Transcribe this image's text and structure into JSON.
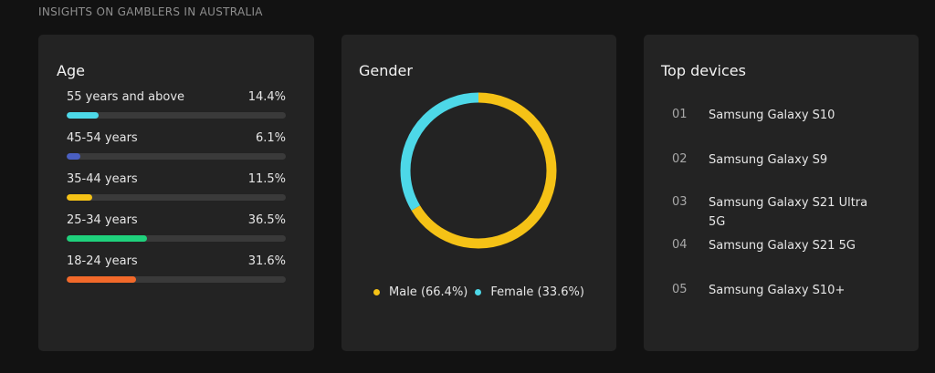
{
  "page": {
    "header": "INSIGHTS ON GAMBLERS IN AUSTRALIA"
  },
  "age": {
    "title": "Age",
    "rows": [
      {
        "label": "55 years and above",
        "percent_text": "14.4%",
        "fill_fraction": 0.144,
        "color": "#4dd8e8"
      },
      {
        "label": "45-54 years",
        "percent_text": "6.1%",
        "fill_fraction": 0.061,
        "color": "#4a5fc1"
      },
      {
        "label": "35-44 years",
        "percent_text": "11.5%",
        "fill_fraction": 0.115,
        "color": "#f5c216"
      },
      {
        "label": "25-34 years",
        "percent_text": "36.5%",
        "fill_fraction": 0.365,
        "color": "#1fd17c"
      },
      {
        "label": "18-24 years",
        "percent_text": "31.6%",
        "fill_fraction": 0.316,
        "color": "#f2692a"
      }
    ]
  },
  "gender": {
    "title": "Gender",
    "segments": [
      {
        "legend": "Male (66.4%)",
        "fraction": 0.664,
        "color": "#f5c216"
      },
      {
        "legend": "Female (33.6%)",
        "fraction": 0.336,
        "color": "#4dd8e8"
      }
    ]
  },
  "devices": {
    "title": "Top devices",
    "items": [
      {
        "num": "01",
        "name": "Samsung Galaxy S10"
      },
      {
        "num": "02",
        "name": "Samsung Galaxy S9"
      },
      {
        "num": "03",
        "name": "Samsung Galaxy S21 Ultra 5G"
      },
      {
        "num": "04",
        "name": "Samsung Galaxy S21 5G"
      },
      {
        "num": "05",
        "name": "Samsung Galaxy S10+"
      }
    ]
  }
}
